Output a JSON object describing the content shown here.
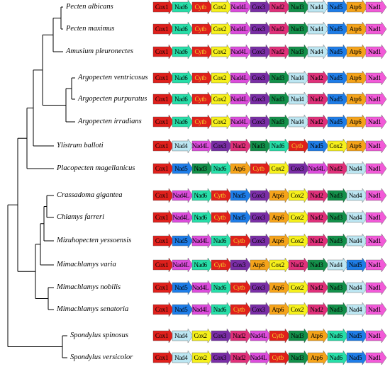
{
  "colors": {
    "Cox1": "#e0201c",
    "Nad6": "#27dea8",
    "Cytb": "#e0201c",
    "Cox2": "#f6f01c",
    "Nad4L": "#dc4cdc",
    "Cox3": "#7a2ea6",
    "Nad2": "#e0307a",
    "Nad3": "#13904a",
    "Nad4": "#bce6f2",
    "Nad5": "#1e7de8",
    "Atp6": "#f5a31a",
    "Nad1": "#f25ad8"
  },
  "label_colors": {
    "Cytb": "#f0d52a",
    "Cox1": "#000000"
  },
  "species": [
    {
      "name": "Pecten albicans",
      "genes": [
        "Cox1",
        "Nad6",
        "Cytb",
        "Cox2",
        "Nad4L",
        "Cox3",
        "Nad2",
        "Nad3",
        "Nad4",
        "Nad5",
        "Atp6",
        "Nad1"
      ]
    },
    {
      "name": "Pecten maximus",
      "genes": [
        "Cox1",
        "Nad6",
        "Cytb",
        "Cox2",
        "Nad4L",
        "Cox3",
        "Nad2",
        "Nad3",
        "Nad4",
        "Nad5",
        "Atp6",
        "Nad1"
      ]
    },
    {
      "name": "Amusium pleuronectes",
      "genes": [
        "Cox1",
        "Nad6",
        "Cytb",
        "Cox2",
        "Nad4L",
        "Cox3",
        "Nad2",
        "Nad3",
        "Nad4",
        "Nad5",
        "Atp6",
        "Nad1"
      ]
    },
    {
      "name": "Argopecten ventricosus",
      "genes": [
        "Cox1",
        "Nad6",
        "Cytb",
        "Cox2",
        "Nad4L",
        "Cox3",
        "Nad3",
        "Nad4",
        "Nad2",
        "Nad5",
        "Atp6",
        "Nad1"
      ]
    },
    {
      "name": "Argopecten purpuratus",
      "genes": [
        "Cox1",
        "Nad6",
        "Cytb",
        "Cox2",
        "Nad4L",
        "Cox3",
        "Nad3",
        "Nad4",
        "Nad2",
        "Nad5",
        "Atp6",
        "Nad1"
      ]
    },
    {
      "name": "Argopecten irradians",
      "genes": [
        "Cox1",
        "Nad6",
        "Cytb",
        "Cox2",
        "Nad4L",
        "Cox3",
        "Nad3",
        "Nad4",
        "Nad2",
        "Nad5",
        "Atp6",
        "Nad1"
      ]
    },
    {
      "name": "Ylistrum balloti",
      "genes": [
        "Cox1",
        "Nad4",
        "Nad4L",
        "Cox3",
        "Nad2",
        "Nad3",
        "Nad6",
        "Cytb",
        "Nad5",
        "Cox2",
        "Atp6",
        "Nad1"
      ]
    },
    {
      "name": "Placopecten magellanicus",
      "genes": [
        "Cox1",
        "Nad5",
        "Nad3",
        "Nad6",
        "Atp6",
        "Cytb",
        "Cox2",
        "Cox3",
        "Nad4L",
        "Nad2",
        "Nad4",
        "Nad1"
      ]
    },
    {
      "name": "Crassadoma gigantea",
      "genes": [
        "Cox1",
        "Nad4L",
        "Nad6",
        "Cytb",
        "Nad5",
        "Cox3",
        "Atp6",
        "Cox2",
        "Nad2",
        "Nad3",
        "Nad4",
        "Nad1"
      ]
    },
    {
      "name": "Chlamys farreri",
      "genes": [
        "Cox1",
        "Nad4L",
        "Nad6",
        "Cytb",
        "Nad5",
        "Cox3",
        "Atp6",
        "Cox2",
        "Nad2",
        "Nad3",
        "Nad4",
        "Nad1"
      ]
    },
    {
      "name": "Mizuhopecten yessoensis",
      "genes": [
        "Cox1",
        "Nad5",
        "Nad4L",
        "Nad6",
        "Cytb",
        "Cox3",
        "Atp6",
        "Cox2",
        "Nad2",
        "Nad3",
        "Nad4",
        "Nad1"
      ]
    },
    {
      "name": "Mimachlamys varia",
      "genes": [
        "Cox1",
        "Nad4L",
        "Nad6",
        "Cytb",
        "Cox3",
        "Atp6",
        "Cox2",
        "Nad2",
        "Nad3",
        "Nad4",
        "Nad5",
        "Nad1"
      ]
    },
    {
      "name": "Mimachlamys nobilis",
      "genes": [
        "Cox1",
        "Nad5",
        "Nad4L",
        "Nad6",
        "Cytb",
        "Cox3",
        "Atp6",
        "Cox2",
        "Nad2",
        "Nad3",
        "Nad4",
        "Nad1"
      ]
    },
    {
      "name": "Mimachlamys senatoria",
      "genes": [
        "Cox1",
        "Nad5",
        "Nad4L",
        "Nad6",
        "Cytb",
        "Cox3",
        "Atp6",
        "Cox2",
        "Nad2",
        "Nad3",
        "Nad4",
        "Nad1"
      ]
    },
    {
      "name": "Spondylus spinosus",
      "genes": [
        "Cox1",
        "Nad4",
        "Cox2",
        "Cox3",
        "Nad2",
        "Nad4L",
        "Cytb",
        "Nad3",
        "Atp6",
        "Nad6",
        "Nad5",
        "Nad1"
      ]
    },
    {
      "name": "Spondylus versicolor",
      "genes": [
        "Cox1",
        "Nad4",
        "Cox2",
        "Cox3",
        "Nad2",
        "Nad4L",
        "Cytb",
        "Nad3",
        "Atp6",
        "Nad6",
        "Nad5",
        "Nad1"
      ]
    }
  ]
}
